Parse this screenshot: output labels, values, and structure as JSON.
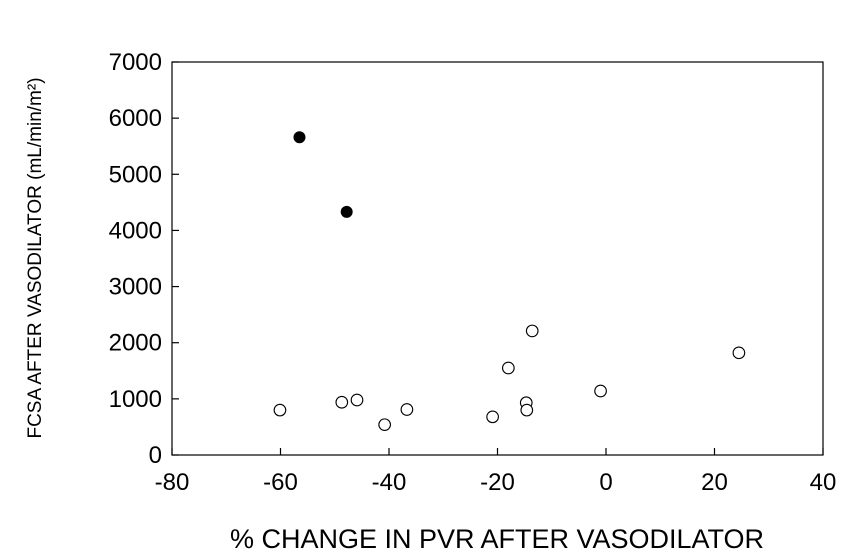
{
  "chart_data": {
    "type": "scatter",
    "title": "",
    "xlabel": "% CHANGE IN PVR AFTER VASODILATOR",
    "ylabel": "FCSA AFTER VASODILATOR (mL/min/m²)",
    "xlim": [
      -80,
      40
    ],
    "ylim": [
      0,
      7000
    ],
    "xticks": [
      -80,
      -60,
      -40,
      -20,
      0,
      20,
      40
    ],
    "yticks": [
      0,
      1000,
      2000,
      3000,
      4000,
      5000,
      6000,
      7000
    ],
    "xtick_labels": [
      "-80",
      "-60",
      "-40",
      "-20",
      "0",
      "20",
      "40"
    ],
    "ytick_labels": [
      "0",
      "1000",
      "2000",
      "3000",
      "4000",
      "5000",
      "6000",
      "7000"
    ],
    "grid": false,
    "series": [
      {
        "marker": "filled-circle",
        "color": "#000000",
        "points": [
          {
            "x": -56.5,
            "y": 5660
          },
          {
            "x": -47.8,
            "y": 4330
          }
        ]
      },
      {
        "marker": "open-circle",
        "color": "#000000",
        "points": [
          {
            "x": -60.1,
            "y": 800
          },
          {
            "x": -48.7,
            "y": 940
          },
          {
            "x": -45.9,
            "y": 980
          },
          {
            "x": -40.8,
            "y": 540
          },
          {
            "x": -36.7,
            "y": 810
          },
          {
            "x": -20.9,
            "y": 680
          },
          {
            "x": -18.0,
            "y": 1550
          },
          {
            "x": -14.7,
            "y": 930
          },
          {
            "x": -14.6,
            "y": 800
          },
          {
            "x": -13.6,
            "y": 2210
          },
          {
            "x": -1.0,
            "y": 1140
          },
          {
            "x": 24.5,
            "y": 1820
          }
        ]
      }
    ]
  }
}
